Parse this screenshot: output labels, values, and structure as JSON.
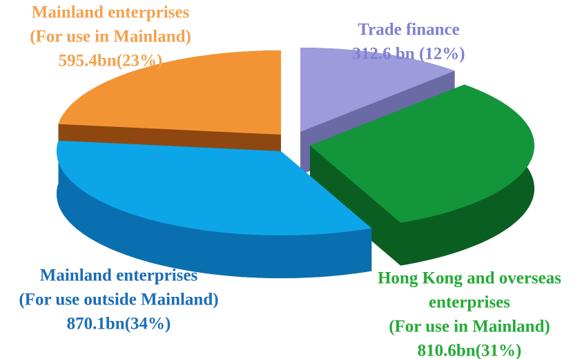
{
  "chart_data": {
    "type": "pie3d",
    "categories": [
      [
        "Trade finance"
      ],
      [
        "Hong Kong and overseas",
        "enterprises",
        "(For use in Mainland)"
      ],
      [
        "Mainland enterprises",
        "(For use outside Mainland)"
      ],
      [
        "Mainland enterprises",
        "(For use in Mainland)"
      ]
    ],
    "values": [
      312.6,
      810.6,
      870.1,
      595.4
    ],
    "value_labels": [
      "312.6 bn (12%)",
      "810.6bn(31%)",
      "870.1bn(34%)",
      "595.4bn(23%)"
    ],
    "colors": [
      "#9c9cdc",
      "#13963a",
      "#0ca6e8",
      "#f39434"
    ],
    "side_colors": [
      "#6a6aa4",
      "#0b5e22",
      "#0a6fae",
      "#8f4710"
    ],
    "label_colors": [
      "#7f7fd2",
      "#23ab35",
      "#1b6db7",
      "#f4a14f"
    ]
  }
}
